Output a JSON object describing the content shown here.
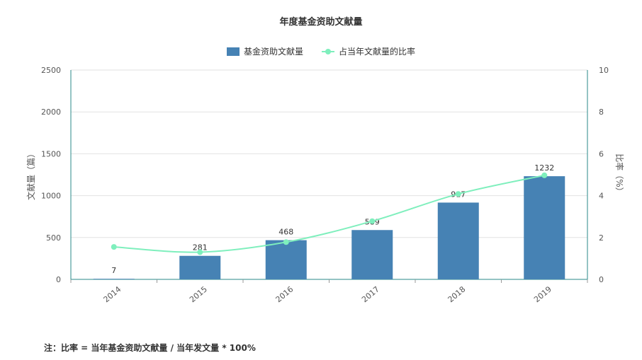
{
  "chart_data": {
    "type": "bar",
    "title": "年度基金资助文献量",
    "categories": [
      "2014",
      "2015",
      "2016",
      "2017",
      "2018",
      "2019"
    ],
    "series": [
      {
        "name": "基金资助文献量",
        "type": "bar",
        "axis": "left",
        "values": [
          7,
          281,
          468,
          589,
          917,
          1232
        ],
        "color": "#4682b4"
      },
      {
        "name": "占当年文献量的比率",
        "type": "line",
        "axis": "right",
        "values": [
          1.55,
          1.3,
          1.78,
          2.78,
          4.08,
          4.97
        ],
        "color": "#7fefbd"
      }
    ],
    "ylabel": "文献量（篇）",
    "y2label": "比率（%）",
    "ylim": [
      0,
      2500
    ],
    "y2lim": [
      0,
      10
    ],
    "yticks": [
      "0",
      "500",
      "1000",
      "1500",
      "2000",
      "2500"
    ],
    "y2ticks": [
      "0",
      "2",
      "4",
      "6",
      "8",
      "10"
    ],
    "grid": true,
    "legend": "top-center"
  },
  "note": "注：比率 = 当年基金资助文献量 / 当年发文量 * 100%"
}
